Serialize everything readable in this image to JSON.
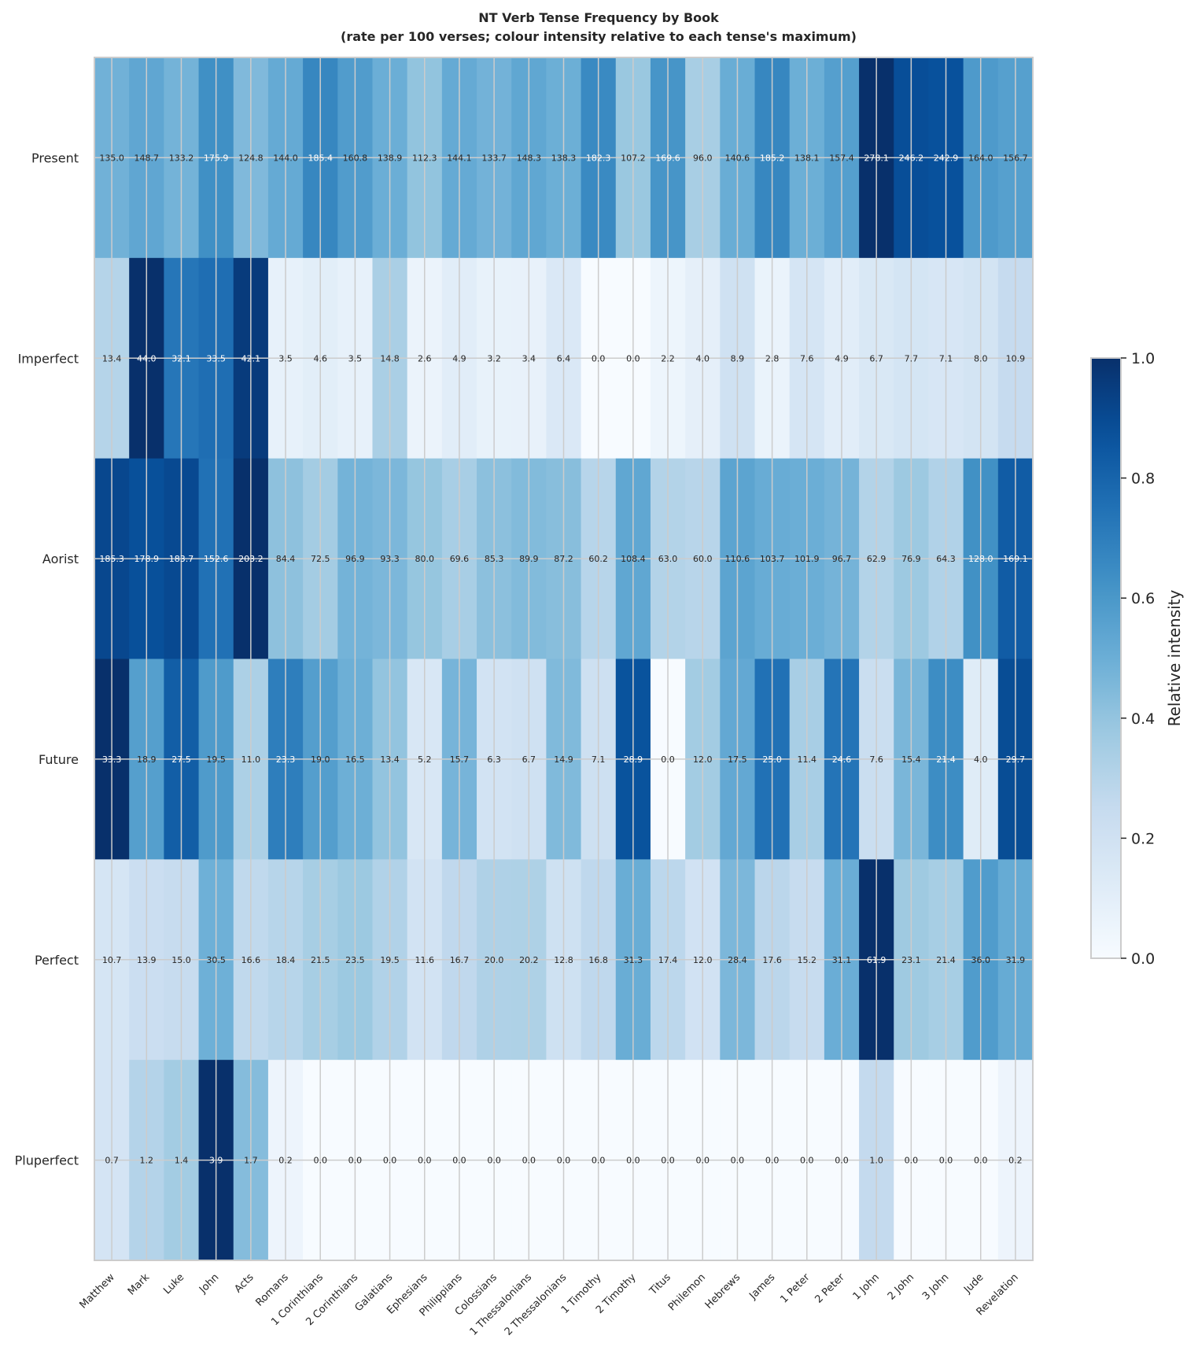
{
  "chart_data": {
    "type": "heatmap",
    "title": "NT Verb Tense Frequency by Book",
    "subtitle": "(rate per 100 verses; colour intensity relative to each tense's maximum)",
    "rows": [
      "Present",
      "Imperfect",
      "Aorist",
      "Future",
      "Perfect",
      "Pluperfect"
    ],
    "columns": [
      "Matthew",
      "Mark",
      "Luke",
      "John",
      "Acts",
      "Romans",
      "1 Corinthians",
      "2 Corinthians",
      "Galatians",
      "Ephesians",
      "Philippians",
      "Colossians",
      "1 Thessalonians",
      "2 Thessalonians",
      "1 Timothy",
      "2 Timothy",
      "Titus",
      "Philemon",
      "Hebrews",
      "James",
      "1 Peter",
      "2 Peter",
      "1 John",
      "2 John",
      "3 John",
      "Jude",
      "Revelation"
    ],
    "values": [
      [
        135.0,
        148.7,
        133.2,
        175.9,
        124.8,
        144.0,
        185.4,
        160.8,
        138.9,
        112.3,
        144.1,
        133.7,
        148.3,
        138.3,
        182.3,
        107.2,
        169.6,
        96.0,
        140.6,
        185.2,
        138.1,
        157.4,
        278.1,
        246.2,
        242.9,
        164.0,
        156.7
      ],
      [
        13.4,
        44.0,
        32.1,
        33.5,
        42.1,
        3.5,
        4.6,
        3.5,
        14.8,
        2.6,
        4.9,
        3.2,
        3.4,
        6.4,
        0.0,
        0.0,
        2.2,
        4.0,
        8.9,
        2.8,
        7.6,
        4.9,
        6.7,
        7.7,
        7.1,
        8.0,
        10.9
      ],
      [
        185.3,
        178.9,
        183.7,
        152.6,
        203.2,
        84.4,
        72.5,
        96.9,
        93.3,
        80.0,
        69.6,
        85.3,
        89.9,
        87.2,
        60.2,
        108.4,
        63.0,
        60.0,
        110.6,
        103.7,
        101.9,
        96.7,
        62.9,
        76.9,
        64.3,
        128.0,
        169.1
      ],
      [
        33.3,
        18.9,
        27.5,
        19.5,
        11.0,
        23.3,
        19.0,
        16.5,
        13.4,
        5.2,
        15.7,
        6.3,
        6.7,
        14.9,
        7.1,
        28.9,
        0.0,
        12.0,
        17.5,
        25.0,
        11.4,
        24.6,
        7.6,
        15.4,
        21.4,
        4.0,
        29.7
      ],
      [
        10.7,
        13.9,
        15.0,
        30.5,
        16.6,
        18.4,
        21.5,
        23.5,
        19.5,
        11.6,
        16.7,
        20.0,
        20.2,
        12.8,
        16.8,
        31.3,
        17.4,
        12.0,
        28.4,
        17.6,
        15.2,
        31.1,
        61.9,
        23.1,
        21.4,
        36.0,
        31.9
      ],
      [
        0.7,
        1.2,
        1.4,
        3.9,
        1.7,
        0.2,
        0.0,
        0.0,
        0.0,
        0.0,
        0.0,
        0.0,
        0.0,
        0.0,
        0.0,
        0.0,
        0.0,
        0.0,
        0.0,
        0.0,
        0.0,
        0.0,
        1.0,
        0.0,
        0.0,
        0.0,
        0.2
      ]
    ],
    "normalization": "row",
    "colormap": "Blues",
    "colorbar": {
      "label": "Relative intensity",
      "range": [
        0.0,
        1.0
      ],
      "ticks": [
        "0.0",
        "0.2",
        "0.4",
        "0.6",
        "0.8",
        "1.0"
      ]
    },
    "grid": true
  }
}
